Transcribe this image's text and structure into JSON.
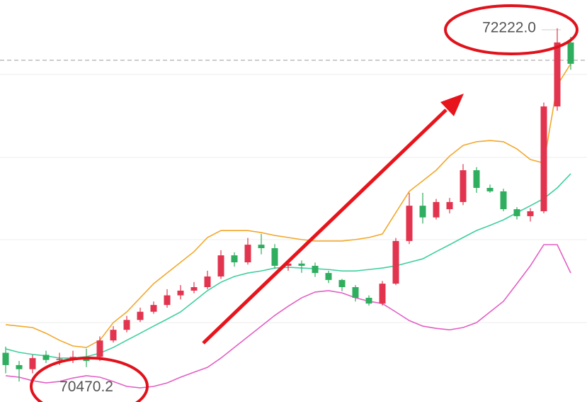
{
  "chart_data": {
    "type": "candlestick",
    "ylim": [
      70400,
      72360
    ],
    "up_color": "#e2344e",
    "down_color": "#2fae5f",
    "open": [
      70640,
      70580,
      70560,
      70630,
      70605,
      70610,
      70620,
      70620,
      70700,
      70752,
      70800,
      70840,
      70873,
      70920,
      70943,
      70960,
      71012,
      71115,
      71081,
      71167,
      71150,
      71064,
      71075,
      71064,
      71029,
      70995,
      70960,
      70908,
      70880,
      70977,
      71185,
      71357,
      71300,
      71340,
      71375,
      71530,
      71444,
      71427,
      71340,
      71306,
      71330,
      71841,
      72153
    ],
    "high": [
      70670,
      70600,
      70630,
      70650,
      70640,
      70650,
      70660,
      70720,
      70770,
      70820,
      70860,
      70890,
      70950,
      70970,
      70985,
      71040,
      71140,
      71130,
      71200,
      71220,
      71170,
      71090,
      71090,
      71080,
      71040,
      71000,
      70970,
      70920,
      70990,
      71200,
      71420,
      71420,
      71390,
      71395,
      71560,
      71545,
      71460,
      71440,
      71350,
      71345,
      71860,
      72222,
      72180
    ],
    "low": [
      70540,
      70500,
      70540,
      70590,
      70580,
      70590,
      70570,
      70600,
      70690,
      70740,
      70790,
      70830,
      70860,
      70900,
      70930,
      70950,
      71000,
      71060,
      71070,
      71120,
      71050,
      71040,
      71030,
      71010,
      70980,
      70940,
      70890,
      70870,
      70870,
      70970,
      71170,
      71270,
      71290,
      71320,
      71360,
      71420,
      71420,
      71330,
      71290,
      71280,
      71320,
      71820,
      72020
    ],
    "close": [
      70580,
      70560,
      70614,
      70605,
      70610,
      70620,
      70600,
      70700,
      70752,
      70800,
      70840,
      70873,
      70920,
      70943,
      70960,
      71012,
      71115,
      71081,
      71167,
      71150,
      71064,
      71075,
      71064,
      71029,
      70995,
      70960,
      70908,
      70880,
      70977,
      71185,
      71357,
      71300,
      71375,
      71375,
      71530,
      71444,
      71427,
      71340,
      71306,
      71330,
      71841,
      72153,
      72049
    ],
    "series": [
      {
        "color": "#f2a82a",
        "values": [
          70777,
          70770,
          70763,
          70735,
          70701,
          70673,
          70666,
          70701,
          70787,
          70839,
          70908,
          70977,
          71029,
          71081,
          71133,
          71202,
          71236,
          71236,
          71236,
          71226,
          71212,
          71202,
          71192,
          71185,
          71185,
          71185,
          71192,
          71202,
          71219,
          71323,
          71427,
          71478,
          71530,
          71599,
          71651,
          71669,
          71675,
          71669,
          71634,
          71582,
          71565,
          71945,
          72049
        ]
      },
      {
        "color": "#3fcf9e",
        "values": [
          70659,
          70642,
          70632,
          70625,
          70614,
          70614,
          70621,
          70638,
          70666,
          70701,
          70735,
          70770,
          70804,
          70839,
          70891,
          70943,
          70984,
          71012,
          71029,
          71039,
          71053,
          71057,
          71053,
          71050,
          71046,
          71039,
          71039,
          71046,
          71053,
          71064,
          71081,
          71098,
          71133,
          71167,
          71202,
          71236,
          71261,
          71288,
          71323,
          71357,
          71392,
          71444,
          71513
        ]
      },
      {
        "color": "#e25fc4",
        "values": [
          70528,
          70521,
          70504,
          70493,
          70500,
          70517,
          70528,
          70521,
          70500,
          70476,
          70469,
          70476,
          70493,
          70521,
          70545,
          70569,
          70614,
          70666,
          70718,
          70770,
          70822,
          70867,
          70908,
          70936,
          70943,
          70932,
          70908,
          70891,
          70880,
          70839,
          70797,
          70770,
          70759,
          70752,
          70763,
          70787,
          70839,
          70891,
          70977,
          71064,
          71167,
          71167,
          71029
        ]
      }
    ],
    "annotations": [
      {
        "value": 72222.0,
        "label": "72222.0"
      },
      {
        "value": 70470.2,
        "label": "70470.2"
      }
    ]
  }
}
